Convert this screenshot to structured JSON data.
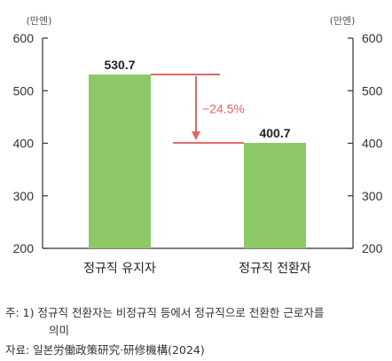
{
  "chart_data": {
    "type": "bar",
    "categories": [
      "정규직 유지자",
      "정규직 전환자"
    ],
    "values": [
      530.7,
      400.7
    ],
    "value_labels": [
      "530.7",
      "400.7"
    ],
    "unit_left": "(만엔)",
    "unit_right": "(만엔)",
    "ylim": [
      200,
      600
    ],
    "yticks": [
      200,
      300,
      400,
      500,
      600
    ],
    "annotation": "−24.5%",
    "grid": false,
    "legend": "none",
    "colors": {
      "bar": "#8cc866",
      "annotation": "#e06666",
      "axis": "#333333"
    }
  },
  "notes": {
    "line1": "주: 1) 정규직 전환자는 비정규직 등에서 정규직으로 전환한 근로자를",
    "line2": "의미",
    "line3": "자료: 일본労働政策研究·研修機構(2024)"
  }
}
